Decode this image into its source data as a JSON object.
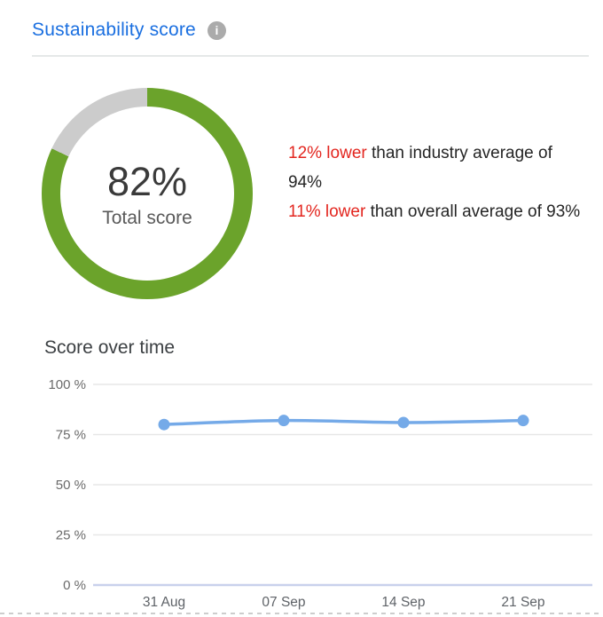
{
  "header": {
    "title": "Sustainability score",
    "info_icon_glyph": "i"
  },
  "comparisons": [
    {
      "highlight": "12% lower",
      "rest": " than industry average of 94%"
    },
    {
      "highlight": "11% lower",
      "rest": " than overall average of 93%"
    }
  ],
  "chart_data": [
    {
      "type": "pie",
      "subtype": "donut",
      "label": "82%",
      "caption": "Total score",
      "segments": [
        {
          "name": "total-score",
          "value": 82,
          "color": "#6ba32b"
        },
        {
          "name": "remainder",
          "value": 18,
          "color": "#cccccc"
        }
      ],
      "start_angle_deg": 0,
      "direction": "clockwise"
    },
    {
      "type": "line",
      "title": "Score over time",
      "categories": [
        "31 Aug",
        "07 Sep",
        "14 Sep",
        "21 Sep"
      ],
      "values": [
        80,
        82,
        81,
        82
      ],
      "ylim": [
        0,
        100
      ],
      "yticks": [
        100,
        75,
        50,
        25,
        0
      ],
      "ytick_labels": [
        "100 %",
        "75 %",
        "50 %",
        "25 %",
        "0 %"
      ],
      "grid": true,
      "legend": "none",
      "line_color": "#75aae8",
      "grid_color": "#e7e7e7",
      "axis_color": "#c9d1ec"
    }
  ],
  "colors": {
    "title_blue": "#1a6fe0",
    "alert_red": "#e3261f",
    "donut_green": "#6ba32b",
    "donut_track": "#cccccc",
    "line_blue": "#75aae8"
  }
}
